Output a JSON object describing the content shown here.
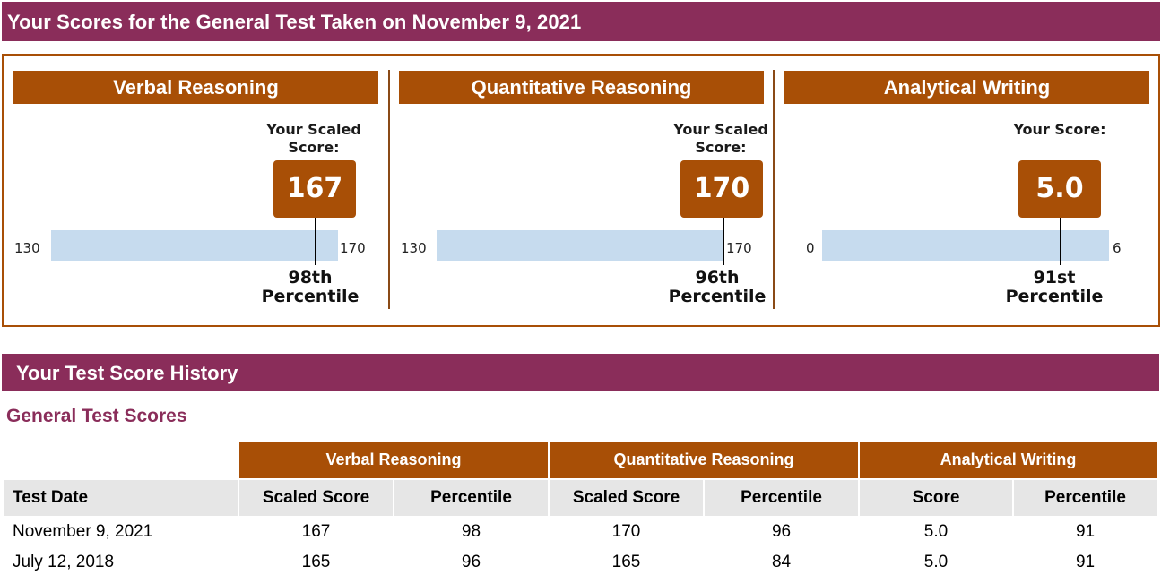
{
  "header": {
    "title": "Your Scores for the General Test Taken on November 9, 2021"
  },
  "colors": {
    "banner": "#8a2d5a",
    "accent": "#a84f06",
    "bar": "#c6dbee",
    "rowHeader": "#e6e6e6"
  },
  "sections": [
    {
      "title": "Verbal Reasoning",
      "caption": "Your Scaled Score:",
      "score": "167",
      "scoreValue": 167,
      "min": "130",
      "max": "170",
      "minValue": 130,
      "maxValue": 170,
      "percentile": "98th",
      "percentileSuffix": "Percentile"
    },
    {
      "title": "Quantitative Reasoning",
      "caption": "Your Scaled Score:",
      "score": "170",
      "scoreValue": 170,
      "min": "130",
      "max": "170",
      "minValue": 130,
      "maxValue": 170,
      "percentile": "96th",
      "percentileSuffix": "Percentile"
    },
    {
      "title": "Analytical Writing",
      "caption": "Your Score:",
      "score": "5.0",
      "scoreValue": 5.0,
      "min": "0",
      "max": "6",
      "minValue": 0,
      "maxValue": 6,
      "percentile": "91st",
      "percentileSuffix": "Percentile"
    }
  ],
  "history": {
    "title": "Your Test Score History",
    "subtitle": "General Test Scores",
    "groups": [
      "Verbal Reasoning",
      "Quantitative Reasoning",
      "Analytical Writing"
    ],
    "columns": [
      "Test Date",
      "Scaled Score",
      "Percentile",
      "Scaled Score",
      "Percentile",
      "Score",
      "Percentile"
    ],
    "rows": [
      [
        "November 9, 2021",
        "167",
        "98",
        "170",
        "96",
        "5.0",
        "91"
      ],
      [
        "July 12, 2018",
        "165",
        "96",
        "165",
        "84",
        "5.0",
        "91"
      ]
    ]
  }
}
